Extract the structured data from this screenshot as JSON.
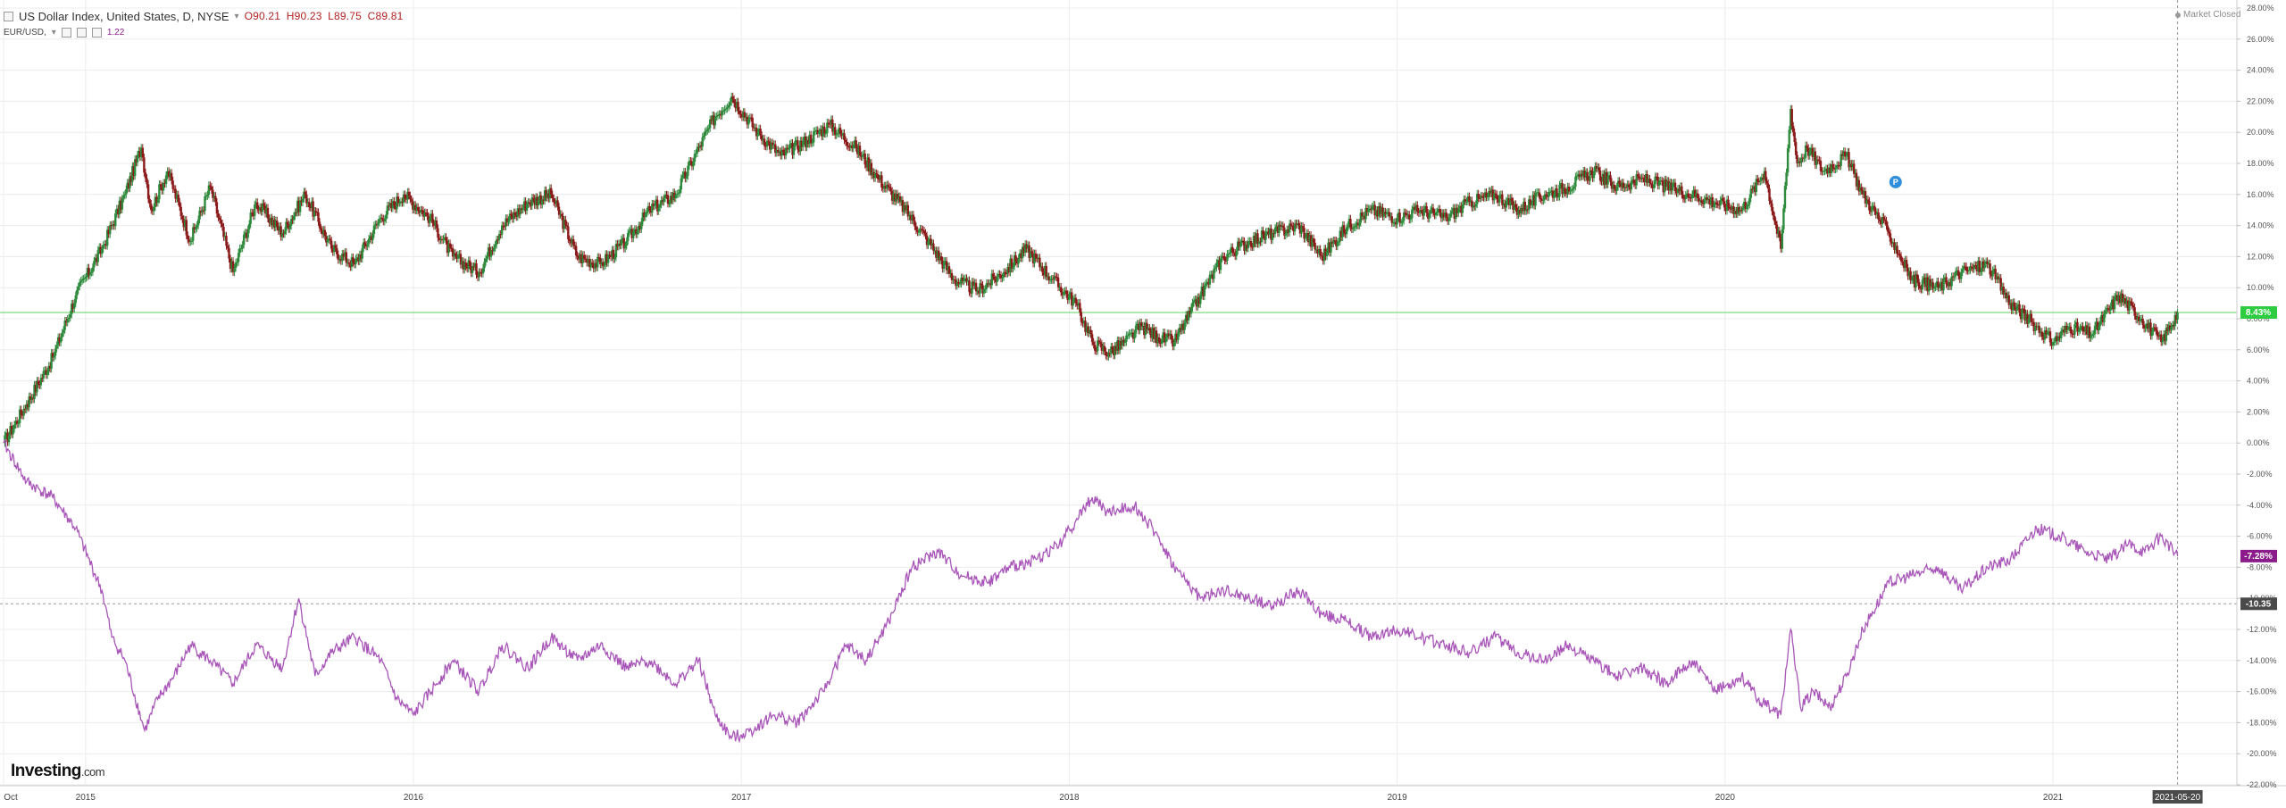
{
  "header": {
    "title": "US Dollar Index, United States, D, NYSE",
    "open": "O90.21",
    "high": "H90.23",
    "low": "L89.75",
    "close": "C89.81",
    "compare_symbol": "EUR/USD,",
    "compare_value": "1.22"
  },
  "status": {
    "market": "Market Closed"
  },
  "logo": {
    "name": "Investing",
    "suffix": ".com"
  },
  "colors": {
    "up": "#2e8b3d",
    "down": "#8b1a1a",
    "compare_line": "#a855b8",
    "current_line": "#5fd35f",
    "grid": "#ececec",
    "label_green": "#2ecc40",
    "label_purple": "#8b1a8b",
    "label_dark": "#4a4a4a"
  },
  "chart_data": {
    "type": "line",
    "y_axis": {
      "unit": "%",
      "min": -22,
      "max": 28,
      "ticks": [
        "28.00%",
        "26.00%",
        "24.00%",
        "22.00%",
        "20.00%",
        "18.00%",
        "16.00%",
        "14.00%",
        "12.00%",
        "10.00%",
        "8.00%",
        "6.00%",
        "4.00%",
        "2.00%",
        "0.00%",
        "-2.00%",
        "-4.00%",
        "-6.00%",
        "-8.00%",
        "-10.00%",
        "-12.00%",
        "-14.00%",
        "-16.00%",
        "-18.00%",
        "-20.00%",
        "-22.00%"
      ],
      "tick_values": [
        28,
        26,
        24,
        22,
        20,
        18,
        16,
        14,
        12,
        10,
        8,
        6,
        4,
        2,
        0,
        -2,
        -4,
        -6,
        -8,
        -10,
        -12,
        -14,
        -16,
        -18,
        -20,
        -22
      ]
    },
    "x_axis": {
      "labels": [
        "Oct",
        "2015",
        "2016",
        "2017",
        "2018",
        "2019",
        "2020",
        "2021"
      ],
      "label_dates": [
        2014.75,
        2015.0,
        2016.0,
        2017.0,
        2018.0,
        2019.0,
        2020.0,
        2021.0
      ],
      "range": [
        2014.75,
        2021.55
      ],
      "current_date_label": "2021-05-20",
      "current_date": 2021.38
    },
    "grid": true,
    "series": [
      {
        "name": "US Dollar Index",
        "style": "candlestick",
        "x": [
          2014.75,
          2014.82,
          2014.9,
          2014.97,
          2015.05,
          2015.12,
          2015.17,
          2015.2,
          2015.25,
          2015.32,
          2015.38,
          2015.45,
          2015.52,
          2015.6,
          2015.67,
          2015.75,
          2015.82,
          2015.9,
          2015.97,
          2016.05,
          2016.12,
          2016.2,
          2016.27,
          2016.35,
          2016.42,
          2016.5,
          2016.57,
          2016.65,
          2016.72,
          2016.8,
          2016.87,
          2016.92,
          2016.97,
          2017.05,
          2017.12,
          2017.2,
          2017.27,
          2017.35,
          2017.42,
          2017.5,
          2017.57,
          2017.65,
          2017.72,
          2017.8,
          2017.87,
          2017.95,
          2018.02,
          2018.07,
          2018.12,
          2018.17,
          2018.22,
          2018.27,
          2018.32,
          2018.4,
          2018.47,
          2018.55,
          2018.62,
          2018.7,
          2018.77,
          2018.85,
          2018.92,
          2019.0,
          2019.07,
          2019.15,
          2019.22,
          2019.3,
          2019.37,
          2019.45,
          2019.52,
          2019.6,
          2019.67,
          2019.75,
          2019.82,
          2019.9,
          2019.97,
          2020.05,
          2020.12,
          2020.17,
          2020.2,
          2020.22,
          2020.25,
          2020.3,
          2020.37,
          2020.42,
          2020.5,
          2020.57,
          2020.65,
          2020.72,
          2020.8,
          2020.87,
          2020.95,
          2021.0,
          2021.05,
          2021.12,
          2021.2,
          2021.27,
          2021.33,
          2021.38
        ],
        "y": [
          0.0,
          2.5,
          5.5,
          9.5,
          12.5,
          16.0,
          19.0,
          15.0,
          17.5,
          13.0,
          16.5,
          11.0,
          15.5,
          13.5,
          16.0,
          12.5,
          11.5,
          14.5,
          16.0,
          14.5,
          12.0,
          11.0,
          14.0,
          15.5,
          16.0,
          12.0,
          11.5,
          13.0,
          15.0,
          16.0,
          19.0,
          21.0,
          22.3,
          20.0,
          18.5,
          19.5,
          20.5,
          19.0,
          17.0,
          15.0,
          13.0,
          10.5,
          9.8,
          11.0,
          12.5,
          10.5,
          9.0,
          6.5,
          5.8,
          6.5,
          7.5,
          6.8,
          6.5,
          9.5,
          12.0,
          13.0,
          13.5,
          14.0,
          12.0,
          14.0,
          15.0,
          14.5,
          15.0,
          14.5,
          15.5,
          16.0,
          15.0,
          16.0,
          16.5,
          17.5,
          16.5,
          17.0,
          16.5,
          16.0,
          15.5,
          15.0,
          17.5,
          12.5,
          21.5,
          18.0,
          19.0,
          17.5,
          18.5,
          16.0,
          13.5,
          10.5,
          10.0,
          11.0,
          11.5,
          9.0,
          7.5,
          6.5,
          7.5,
          7.0,
          9.5,
          8.0,
          6.5,
          8.4
        ]
      },
      {
        "name": "EUR/USD",
        "style": "line",
        "x": [
          2014.75,
          2014.82,
          2014.9,
          2014.97,
          2015.05,
          2015.08,
          2015.12,
          2015.18,
          2015.22,
          2015.27,
          2015.32,
          2015.38,
          2015.45,
          2015.52,
          2015.6,
          2015.65,
          2015.7,
          2015.75,
          2015.82,
          2015.9,
          2015.95,
          2016.0,
          2016.07,
          2016.12,
          2016.2,
          2016.27,
          2016.35,
          2016.42,
          2016.5,
          2016.57,
          2016.65,
          2016.72,
          2016.8,
          2016.87,
          2016.92,
          2016.97,
          2017.03,
          2017.1,
          2017.17,
          2017.25,
          2017.32,
          2017.38,
          2017.45,
          2017.52,
          2017.6,
          2017.67,
          2017.75,
          2017.82,
          2017.9,
          2017.97,
          2018.02,
          2018.07,
          2018.12,
          2018.2,
          2018.27,
          2018.32,
          2018.4,
          2018.47,
          2018.55,
          2018.62,
          2018.7,
          2018.77,
          2018.85,
          2018.92,
          2019.0,
          2019.07,
          2019.15,
          2019.22,
          2019.3,
          2019.37,
          2019.45,
          2019.52,
          2019.6,
          2019.67,
          2019.75,
          2019.82,
          2019.9,
          2019.97,
          2020.05,
          2020.1,
          2020.17,
          2020.2,
          2020.23,
          2020.27,
          2020.32,
          2020.37,
          2020.42,
          2020.5,
          2020.57,
          2020.65,
          2020.72,
          2020.8,
          2020.87,
          2020.95,
          2021.02,
          2021.1,
          2021.17,
          2021.23,
          2021.28,
          2021.33,
          2021.38
        ],
        "y": [
          0.0,
          -2.5,
          -3.5,
          -5.5,
          -9.5,
          -12.5,
          -14.0,
          -18.5,
          -16.5,
          -15.0,
          -13.0,
          -14.0,
          -15.5,
          -13.0,
          -14.5,
          -10.0,
          -15.0,
          -13.5,
          -12.5,
          -14.0,
          -16.5,
          -17.5,
          -15.5,
          -14.0,
          -16.0,
          -13.0,
          -14.5,
          -12.5,
          -14.0,
          -13.0,
          -14.5,
          -14.0,
          -15.5,
          -14.0,
          -17.5,
          -19.0,
          -18.5,
          -17.5,
          -18.0,
          -16.0,
          -13.0,
          -14.0,
          -11.5,
          -8.0,
          -7.0,
          -8.5,
          -9.0,
          -8.0,
          -7.5,
          -6.5,
          -5.0,
          -3.5,
          -4.5,
          -4.0,
          -6.0,
          -8.0,
          -10.0,
          -9.5,
          -10.0,
          -10.5,
          -9.5,
          -11.0,
          -11.5,
          -12.5,
          -12.0,
          -12.5,
          -13.0,
          -13.5,
          -12.5,
          -13.5,
          -14.0,
          -13.0,
          -14.0,
          -15.0,
          -14.5,
          -15.5,
          -14.0,
          -16.0,
          -15.0,
          -16.5,
          -17.5,
          -12.0,
          -17.0,
          -16.0,
          -17.0,
          -15.0,
          -12.0,
          -9.0,
          -8.5,
          -8.0,
          -9.5,
          -8.0,
          -7.5,
          -5.5,
          -6.0,
          -7.0,
          -7.5,
          -6.5,
          -7.0,
          -6.0,
          -7.28
        ]
      }
    ],
    "current_value_labels": {
      "usd_index": "8.43%",
      "eur_usd": "-7.28%",
      "reference": "-10.35"
    },
    "reference_value": -10.35,
    "event_marker": {
      "label": "P",
      "x": 2020.52,
      "y": 16.8
    }
  }
}
